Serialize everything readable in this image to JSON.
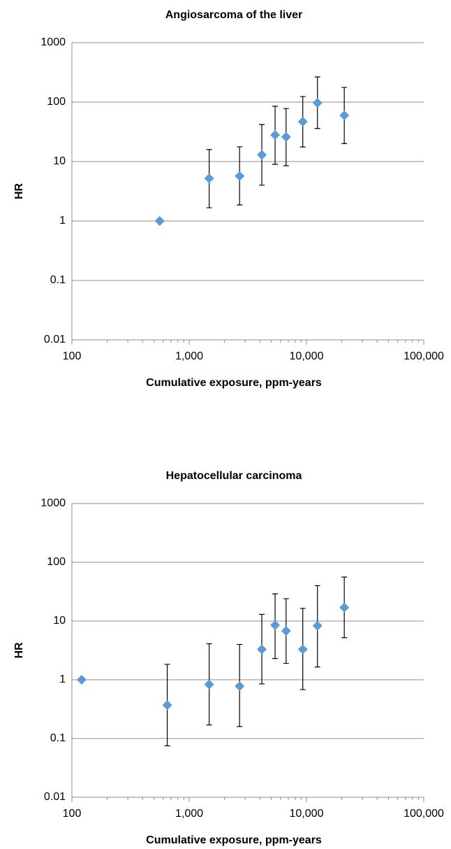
{
  "chart_data": [
    {
      "type": "scatter",
      "title": "Angiosarcoma of the liver",
      "x_label": "Cumulative exposure, ppm-years",
      "y_label": "HR",
      "log_x": true,
      "log_y": true,
      "grid": true,
      "color": "#5b9bd5",
      "x": [
        560,
        1480,
        2690,
        4160,
        5400,
        6700,
        9300,
        12400,
        21000
      ],
      "values": [
        1,
        5.2,
        5.7,
        13,
        28,
        26,
        47,
        97,
        60
      ],
      "ci_low": [
        null,
        1.67,
        1.86,
        4,
        9,
        8.5,
        17.6,
        36,
        20
      ],
      "ci_high": [
        null,
        15.9,
        17.7,
        42,
        85,
        78,
        124,
        265,
        177
      ],
      "xlim": [
        100,
        100000
      ],
      "ylim": [
        0.01,
        1000
      ],
      "xticks": [
        100,
        {
          "value": 1000,
          "label": "1,000"
        },
        {
          "value": 10000,
          "label": "10,000"
        },
        {
          "value": 100000,
          "label": "100,000"
        }
      ],
      "yticks": [
        0.01,
        0.1,
        1,
        10,
        100,
        1000
      ]
    },
    {
      "type": "scatter",
      "title": "Hepatocellular carcinoma",
      "x_label": "Cumulative exposure, ppm-years",
      "y_label": "HR",
      "log_x": true,
      "log_y": true,
      "grid": true,
      "color": "#5b9bd5",
      "x": [
        121,
        650,
        1480,
        2690,
        4160,
        5400,
        6700,
        9300,
        12400,
        21000
      ],
      "values": [
        1,
        0.37,
        0.83,
        0.78,
        3.3,
        8.5,
        6.8,
        3.3,
        8.3,
        17
      ],
      "ci_low": [
        null,
        0.075,
        0.17,
        0.16,
        0.85,
        2.3,
        1.9,
        0.68,
        1.65,
        5.2
      ],
      "ci_high": [
        null,
        1.83,
        4.1,
        4,
        13,
        29,
        24,
        16.4,
        40,
        56
      ],
      "xlim": [
        100,
        100000
      ],
      "ylim": [
        0.01,
        1000
      ],
      "xticks": [
        100,
        {
          "value": 1000,
          "label": "1,000"
        },
        {
          "value": 10000,
          "label": "10,000"
        },
        {
          "value": 100000,
          "label": "100,000"
        }
      ],
      "yticks": [
        0.01,
        0.1,
        1,
        10,
        100,
        1000
      ]
    }
  ]
}
